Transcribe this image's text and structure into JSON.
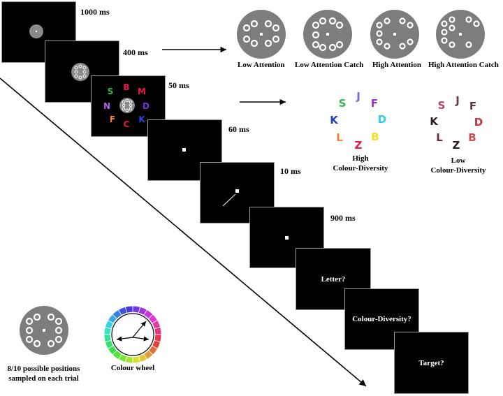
{
  "timings": [
    "1000 ms",
    "400 ms",
    "50 ms",
    "60 ms",
    "10 ms",
    "900 ms"
  ],
  "conditions": [
    {
      "label": "Low Attention"
    },
    {
      "label": "Low Attention Catch"
    },
    {
      "label": "High Attention"
    },
    {
      "label": "High Attention Catch"
    }
  ],
  "letters_display": [
    {
      "letter": "S",
      "color": "#3cb44b"
    },
    {
      "letter": "B",
      "color": "#e6194b"
    },
    {
      "letter": "M",
      "color": "#e6194b"
    },
    {
      "letter": "N",
      "color": "#b061e8"
    },
    {
      "letter": "D",
      "color": "#7b2fd6"
    },
    {
      "letter": "F",
      "color": "#f58231"
    },
    {
      "letter": "C",
      "color": "#e6194b"
    },
    {
      "letter": "K",
      "color": "#2d44e0"
    }
  ],
  "high_diversity": {
    "caption_line1": "High",
    "caption_line2": "Colour-Diversity",
    "letters": [
      {
        "letter": "J",
        "color": "#6b6bd8"
      },
      {
        "letter": "S",
        "color": "#3cb44b"
      },
      {
        "letter": "F",
        "color": "#9b32c9"
      },
      {
        "letter": "K",
        "color": "#1f3fb0"
      },
      {
        "letter": "D",
        "color": "#29d0e8"
      },
      {
        "letter": "L",
        "color": "#f58231"
      },
      {
        "letter": "B",
        "color": "#f2e02a"
      },
      {
        "letter": "Z",
        "color": "#e6194b"
      }
    ]
  },
  "low_diversity": {
    "caption_line1": "Low",
    "caption_line2": "Colour-Diversity",
    "letters": [
      {
        "letter": "J",
        "color": "#6b3a40"
      },
      {
        "letter": "S",
        "color": "#b5445a"
      },
      {
        "letter": "F",
        "color": "#5a3a3a"
      },
      {
        "letter": "K",
        "color": "#2b1b1b"
      },
      {
        "letter": "D",
        "color": "#c8323c"
      },
      {
        "letter": "L",
        "color": "#6b2f37"
      },
      {
        "letter": "B",
        "color": "#c8505a"
      },
      {
        "letter": "Z",
        "color": "#2d2020"
      }
    ]
  },
  "questions": [
    "Letter?",
    "Colour-Diversity?",
    "Target?"
  ],
  "positions_caption": {
    "line1": "8/10 possible positions",
    "line2": "sampled on each trial"
  },
  "colour_wheel_caption": "Colour wheel",
  "colors": {
    "screen_bg": "#000000",
    "disc_fill": "#7d7d7d",
    "disc_small_fill": "#8a8a8a"
  }
}
